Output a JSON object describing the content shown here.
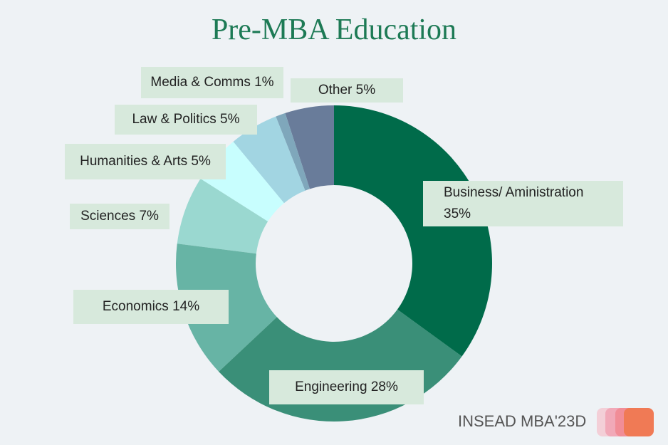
{
  "chart_data": {
    "type": "pie",
    "donut": true,
    "title": "Pre-MBA Education",
    "categories": [
      "Business/ Aministration",
      "Engineering",
      "Economics",
      "Sciences",
      "Humanities & Arts",
      "Law & Politics",
      "Media & Comms",
      "Other"
    ],
    "values": [
      35,
      28,
      14,
      7,
      5,
      5,
      1,
      5
    ],
    "value_labels": [
      "35%",
      "28%",
      "14%",
      "7%",
      "5%",
      "5%",
      "1%",
      "5%"
    ],
    "colors": [
      "#006b4a",
      "#3a8f78",
      "#67b4a5",
      "#9ad8d0",
      "#c8fefe",
      "#a2d5e2",
      "#7fa7bb",
      "#697c9a"
    ]
  },
  "footer": "INSEAD MBA'23D"
}
